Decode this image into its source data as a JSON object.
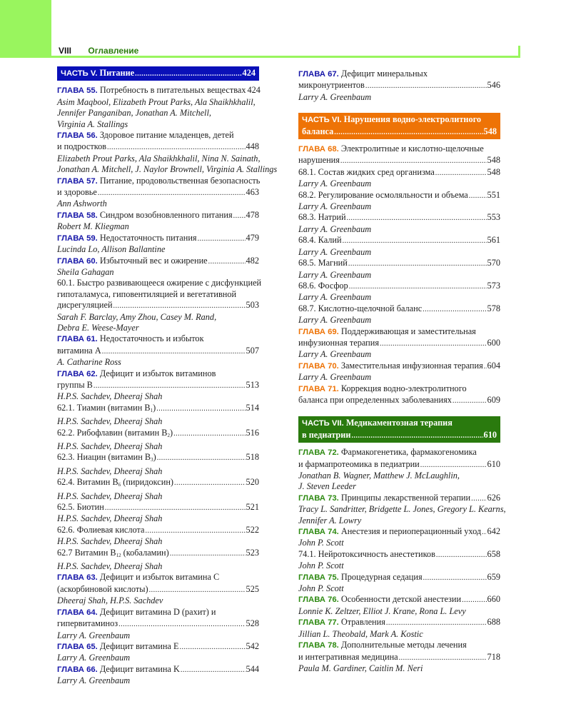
{
  "header": {
    "page_number": "VIII",
    "title": "Оглавление"
  },
  "colors": {
    "part_v": "#0a10b8",
    "part_vi": "#ee7306",
    "part_vii": "#2a7a0e",
    "label_v": "#1616a8",
    "label_vi": "#ee7306",
    "label_vii": "#2e8a12",
    "accent_green": "#99f55e"
  },
  "left_column": [
    {
      "type": "part",
      "color": "#0a10b8",
      "label": "ЧАСТЬ V.",
      "lines": [
        {
          "text": "Питание",
          "page": "424"
        }
      ]
    },
    {
      "type": "ch",
      "label": "ГЛАВА 55.",
      "color": "#1616a8",
      "text": "Потребность в питательных веществах",
      "page": "424"
    },
    {
      "type": "a",
      "text": "Asim Maqbool, Elizabeth Prout Parks, Ala Shaikhkhalil,"
    },
    {
      "type": "a",
      "text": "Jennifer Panganiban, Jonathan A. Mitchell,"
    },
    {
      "type": "a",
      "text": "Virginia A. Stallings"
    },
    {
      "type": "ch",
      "label": "ГЛАВА 56.",
      "color": "#1616a8",
      "text": "Здоровое питание младенцев, детей"
    },
    {
      "type": "t",
      "text": "и подростков",
      "page": "448"
    },
    {
      "type": "a",
      "text": "Elizabeth Prout Parks, Ala Shaikhkhalil, Nina N. Sainath,"
    },
    {
      "type": "a",
      "text": "Jonathan A. Mitchell, J. Naylor Brownell, Virginia A. Stallings"
    },
    {
      "type": "ch",
      "label": "ГЛАВА 57.",
      "color": "#1616a8",
      "text": "Питание, продовольственная безопасность"
    },
    {
      "type": "t",
      "text": "и здоровье",
      "page": "463"
    },
    {
      "type": "a",
      "text": "Ann Ashworth"
    },
    {
      "type": "ch",
      "label": "ГЛАВА 58.",
      "color": "#1616a8",
      "text": "Синдром возобновленного питания",
      "page": "478"
    },
    {
      "type": "a",
      "text": "Robert M. Kliegman"
    },
    {
      "type": "ch",
      "label": "ГЛАВА 59.",
      "color": "#1616a8",
      "text": "Недостаточность питания",
      "page": "479"
    },
    {
      "type": "a",
      "text": "Lucinda Lo, Allison Ballantine"
    },
    {
      "type": "ch",
      "label": "ГЛАВА 60.",
      "color": "#1616a8",
      "text": "Избыточный вес и ожирение",
      "page": "482"
    },
    {
      "type": "a",
      "text": "Sheila Gahagan"
    },
    {
      "type": "t",
      "text": "60.1. Быстро развивающееся ожирение с дисфункцией"
    },
    {
      "type": "t",
      "text": "гипоталамуса, гиповентиляцией и вегетативной"
    },
    {
      "type": "t",
      "text": "дисрегуляцией",
      "page": "503"
    },
    {
      "type": "a",
      "text": "Sarah F. Barclay, Amy Zhou, Casey M. Rand,"
    },
    {
      "type": "a",
      "text": "Debra E. Weese-Mayer"
    },
    {
      "type": "ch",
      "label": "ГЛАВА 61.",
      "color": "#1616a8",
      "text": "Недостаточность и избыток"
    },
    {
      "type": "t",
      "text": "витамина А",
      "page": "507"
    },
    {
      "type": "a",
      "text": "A. Catharine Ross"
    },
    {
      "type": "ch",
      "label": "ГЛАВА 62.",
      "color": "#1616a8",
      "text": "Дефицит и избыток витаминов"
    },
    {
      "type": "t",
      "text": "группы В",
      "page": "513"
    },
    {
      "type": "a",
      "text": "H.P.S. Sachdev, Dheeraj Shah"
    },
    {
      "type": "t",
      "text": "62.1. Тиамин (витамин В",
      "sub": "1",
      "after": ")",
      "page": "514"
    },
    {
      "type": "a",
      "text": "H.P.S. Sachdev, Dheeraj Shah"
    },
    {
      "type": "t",
      "text": "62.2. Рибофлавин (витамин В",
      "sub": "2",
      "after": ")",
      "page": "516"
    },
    {
      "type": "a",
      "text": "H.P.S. Sachdev, Dheeraj Shah"
    },
    {
      "type": "t",
      "text": "62.3. Ниацин (витамин В",
      "sub": "3",
      "after": ")",
      "page": "518"
    },
    {
      "type": "a",
      "text": "H.P.S. Sachdev, Dheeraj Shah"
    },
    {
      "type": "t",
      "text": "62.4. Витамин В",
      "sub": "6",
      "after": " (пиридоксин)",
      "page": "520"
    },
    {
      "type": "a",
      "text": "H.P.S. Sachdev, Dheeraj Shah"
    },
    {
      "type": "t",
      "text": "62.5. Биотин",
      "page": "521"
    },
    {
      "type": "a",
      "text": "H.P.S. Sachdev, Dheeraj Shah"
    },
    {
      "type": "t",
      "text": "62.6. Фолиевая кислота",
      "page": "522"
    },
    {
      "type": "a",
      "text": "H.P.S. Sachdev, Dheeraj Shah"
    },
    {
      "type": "t",
      "text": "62.7 Витамин В",
      "sub": "12",
      "after": " (кобаламин)",
      "page": "523"
    },
    {
      "type": "a",
      "text": "H.P.S. Sachdev, Dheeraj Shah"
    },
    {
      "type": "ch",
      "label": "ГЛАВА 63.",
      "color": "#1616a8",
      "text": "Дефицит и избыток витамина С"
    },
    {
      "type": "t",
      "text": "(аскорбиновой кислоты)",
      "page": "525"
    },
    {
      "type": "a",
      "text": "Dheeraj Shah, H.P.S. Sachdev"
    },
    {
      "type": "ch",
      "label": "ГЛАВА 64.",
      "color": "#1616a8",
      "text": "Дефицит витамина D (рахит) и"
    },
    {
      "type": "t",
      "text": "гипервитаминоз",
      "page": "528"
    },
    {
      "type": "a",
      "text": "Larry A. Greenbaum"
    },
    {
      "type": "ch",
      "label": "ГЛАВА 65.",
      "color": "#1616a8",
      "text": "Дефицит витамина Е",
      "page": "542"
    },
    {
      "type": "a",
      "text": "Larry A. Greenbaum"
    },
    {
      "type": "ch",
      "label": "ГЛАВА 66.",
      "color": "#1616a8",
      "text": "Дефицит витамина K",
      "page": "544"
    },
    {
      "type": "a",
      "text": "Larry A. Greenbaum"
    }
  ],
  "right_column": [
    {
      "type": "ch",
      "label": "ГЛАВА 67.",
      "color": "#1616a8",
      "text": "Дефицит минеральных"
    },
    {
      "type": "t",
      "text": "микронутриентов",
      "page": "546"
    },
    {
      "type": "a",
      "text": "Larry A. Greenbaum"
    },
    {
      "type": "gap"
    },
    {
      "type": "part",
      "color": "#ee7306",
      "label": "ЧАСТЬ VI.",
      "lines": [
        {
          "text": "Нарушения водно-электролитного"
        },
        {
          "text": "баланса",
          "page": "548"
        }
      ]
    },
    {
      "type": "ch",
      "label": "ГЛАВА 68.",
      "color": "#ee7306",
      "text": "Электролитные и кислотно-щелочные"
    },
    {
      "type": "t",
      "text": "нарушения",
      "page": "548"
    },
    {
      "type": "t",
      "text": "68.1. Состав жидких сред организма",
      "page": "548"
    },
    {
      "type": "a",
      "text": "Larry A. Greenbaum"
    },
    {
      "type": "t",
      "text": "68.2. Регулирование осмоляльности и объема",
      "page": "551"
    },
    {
      "type": "a",
      "text": "Larry A. Greenbaum"
    },
    {
      "type": "t",
      "text": "68.3. Натрий",
      "page": "553"
    },
    {
      "type": "a",
      "text": "Larry A. Greenbaum"
    },
    {
      "type": "t",
      "text": "68.4. Калий",
      "page": "561"
    },
    {
      "type": "a",
      "text": "Larry A. Greenbaum"
    },
    {
      "type": "t",
      "text": "68.5. Магний",
      "page": "570"
    },
    {
      "type": "a",
      "text": "Larry A. Greenbaum"
    },
    {
      "type": "t",
      "text": "68.6. Фосфор",
      "page": "573"
    },
    {
      "type": "a",
      "text": "Larry A. Greenbaum"
    },
    {
      "type": "t",
      "text": "68.7. Кислотно-щелочной баланс",
      "page": "578"
    },
    {
      "type": "a",
      "text": "Larry A. Greenbaum"
    },
    {
      "type": "ch",
      "label": "ГЛАВА 69.",
      "color": "#ee7306",
      "text": "Поддерживающая и заместительная"
    },
    {
      "type": "t",
      "text": "инфузионная терапия",
      "page": "600"
    },
    {
      "type": "a",
      "text": "Larry A. Greenbaum"
    },
    {
      "type": "ch",
      "label": "ГЛАВА 70.",
      "color": "#ee7306",
      "text": "Заместительная инфузионная терапия",
      "page": "604"
    },
    {
      "type": "a",
      "text": "Larry A. Greenbaum"
    },
    {
      "type": "ch",
      "label": "ГЛАВА 71.",
      "color": "#ee7306",
      "text": "Коррекция водно-электролитного"
    },
    {
      "type": "t",
      "text": "баланса при определенных заболеваниях",
      "page": "609"
    },
    {
      "type": "gap"
    },
    {
      "type": "part",
      "color": "#2a7a0e",
      "label": "ЧАСТЬ VII.",
      "lines": [
        {
          "text": "Медикаментозная терапия"
        },
        {
          "text": "в педиатрии",
          "page": "610"
        }
      ]
    },
    {
      "type": "ch",
      "label": "ГЛАВА 72.",
      "color": "#2e8a12",
      "text": "Фармакогенетика, фармакогеномика"
    },
    {
      "type": "t",
      "text": "и фармапротеомика в педиатрии",
      "page": "610"
    },
    {
      "type": "a",
      "text": "Jonathan B. Wagner, Matthew J. McLaughlin,"
    },
    {
      "type": "a",
      "text": "J. Steven Leeder"
    },
    {
      "type": "ch",
      "label": "ГЛАВА 73.",
      "color": "#2e8a12",
      "text": "Принципы лекарственной терапии",
      "page": "626"
    },
    {
      "type": "a",
      "text": "Tracy L. Sandritter, Bridgette L. Jones, Gregory L. Kearns,"
    },
    {
      "type": "a",
      "text": "Jennifer A. Lowry"
    },
    {
      "type": "ch",
      "label": "ГЛАВА 74.",
      "color": "#2e8a12",
      "text": "Анестезия и периоперационный уход",
      "page": "642"
    },
    {
      "type": "a",
      "text": "John P. Scott"
    },
    {
      "type": "t",
      "text": "74.1. Нейротоксичность анестетиков",
      "page": "658"
    },
    {
      "type": "a",
      "text": "John P. Scott"
    },
    {
      "type": "ch",
      "label": "ГЛАВА 75.",
      "color": "#2e8a12",
      "text": "Процедурная седация",
      "page": "659"
    },
    {
      "type": "a",
      "text": "John P. Scott"
    },
    {
      "type": "ch",
      "label": "ГЛАВА 76.",
      "color": "#2e8a12",
      "text": "Особенности детской анестезии",
      "page": "660"
    },
    {
      "type": "a",
      "text": "Lonnie K. Zeltzer, Elliot J. Krane, Rona L. Levy"
    },
    {
      "type": "ch",
      "label": "ГЛАВА 77.",
      "color": "#2e8a12",
      "text": "Отравления",
      "page": "688"
    },
    {
      "type": "a",
      "text": "Jillian L. Theobald, Mark A. Kostic"
    },
    {
      "type": "ch",
      "label": "ГЛАВА 78.",
      "color": "#2e8a12",
      "text": "Дополнительные методы лечения"
    },
    {
      "type": "t",
      "text": "и интегративная медицина",
      "page": "718"
    },
    {
      "type": "a",
      "text": "Paula M. Gardiner, Caitlin M. Neri"
    }
  ]
}
